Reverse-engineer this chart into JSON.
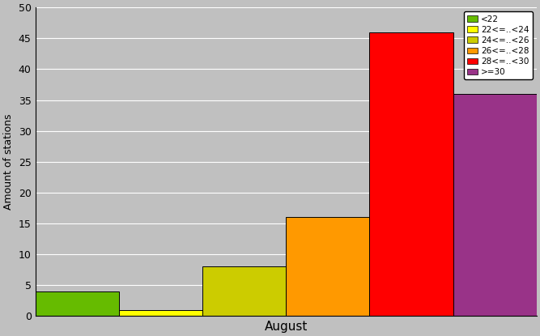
{
  "categories": [
    "<22",
    "22<=..<24",
    "24<=..<26",
    "26<=..<28",
    "28<=..<30",
    ">=30"
  ],
  "values": [
    4,
    1,
    8,
    16,
    46,
    36
  ],
  "colors": [
    "#66bb00",
    "#ffff00",
    "#cccc00",
    "#ff9900",
    "#ff0000",
    "#993388"
  ],
  "xlabel": "August",
  "ylabel": "Amount of stations",
  "ylim": [
    0,
    50
  ],
  "yticks": [
    0,
    5,
    10,
    15,
    20,
    25,
    30,
    35,
    40,
    45,
    50
  ],
  "background_color": "#c0c0c0",
  "bar_edge_color": "#000000",
  "legend_labels": [
    "<22",
    "22<=..<24",
    "24<=..<26",
    "26<=..<28",
    "28<=..<30",
    ">=30"
  ],
  "plot_bg": "#c8c8c8"
}
